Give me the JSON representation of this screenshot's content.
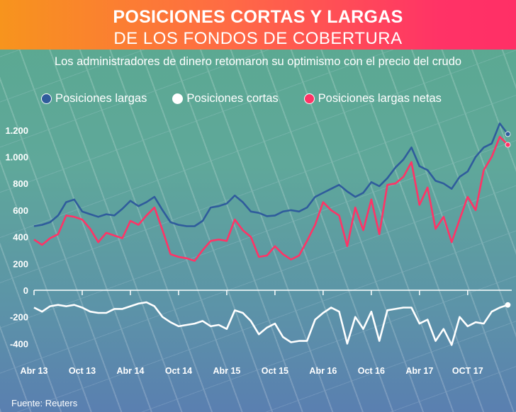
{
  "header": {
    "title_line1": "POSICIONES CORTAS Y LARGAS",
    "title_line2": "DE LOS FONDOS DE COBERTURA"
  },
  "subtitle": "Los administradores de dinero retomaron su optimismo con el precio del crudo",
  "source": "Fuente: Reuters",
  "colors": {
    "long": "#2f5c9c",
    "short": "#ffffff",
    "net": "#ff3366",
    "header_start": "#f7941d",
    "header_end": "#ff3366"
  },
  "chart_data": {
    "type": "line",
    "title": "",
    "xlabel": "",
    "ylabel": "",
    "ylim": [
      -500,
      1300
    ],
    "y_ticks": [
      {
        "v": 1200,
        "label": "1.200"
      },
      {
        "v": 1000,
        "label": "1.000"
      },
      {
        "v": 800,
        "label": "800"
      },
      {
        "v": 600,
        "label": "600"
      },
      {
        "v": 400,
        "label": "400"
      },
      {
        "v": 200,
        "label": "200"
      },
      {
        "v": 0,
        "label": "0"
      },
      {
        "v": -200,
        "label": "-200"
      },
      {
        "v": -400,
        "label": "-400"
      }
    ],
    "x_ticks": [
      {
        "x": "2013-04",
        "label": "Abr 13"
      },
      {
        "x": "2013-10",
        "label": "Oct 13"
      },
      {
        "x": "2014-04",
        "label": "Abr 14"
      },
      {
        "x": "2014-10",
        "label": "Oct 14"
      },
      {
        "x": "2015-04",
        "label": "Abr 15"
      },
      {
        "x": "2015-10",
        "label": "Oct 15"
      },
      {
        "x": "2016-04",
        "label": "Abr 16"
      },
      {
        "x": "2016-10",
        "label": "Oct 16"
      },
      {
        "x": "2017-04",
        "label": "Abr 17"
      },
      {
        "x": "2017-10",
        "label": "OCT 17"
      }
    ],
    "grid": false,
    "legend_placement": "top",
    "x": [
      "2013-04",
      "2013-05",
      "2013-06",
      "2013-07",
      "2013-08",
      "2013-09",
      "2013-10",
      "2013-11",
      "2013-12",
      "2014-01",
      "2014-02",
      "2014-03",
      "2014-04",
      "2014-05",
      "2014-06",
      "2014-07",
      "2014-08",
      "2014-09",
      "2014-10",
      "2014-11",
      "2014-12",
      "2015-01",
      "2015-02",
      "2015-03",
      "2015-04",
      "2015-05",
      "2015-06",
      "2015-07",
      "2015-08",
      "2015-09",
      "2015-10",
      "2015-11",
      "2015-12",
      "2016-01",
      "2016-02",
      "2016-03",
      "2016-04",
      "2016-05",
      "2016-06",
      "2016-07",
      "2016-08",
      "2016-09",
      "2016-10",
      "2016-11",
      "2016-12",
      "2017-01",
      "2017-02",
      "2017-03",
      "2017-04",
      "2017-05",
      "2017-06",
      "2017-07",
      "2017-08",
      "2017-09",
      "2017-10",
      "2017-11",
      "2017-12",
      "2018-01",
      "2018-02",
      "2018-03"
    ],
    "series": [
      {
        "name": "Posiciones largas",
        "key": "long",
        "values": [
          480,
          490,
          510,
          560,
          660,
          680,
          590,
          570,
          550,
          570,
          560,
          610,
          670,
          630,
          660,
          700,
          600,
          510,
          490,
          480,
          480,
          520,
          620,
          630,
          650,
          710,
          660,
          590,
          580,
          555,
          560,
          590,
          600,
          590,
          620,
          700,
          730,
          760,
          790,
          740,
          700,
          730,
          810,
          780,
          840,
          920,
          980,
          1070,
          930,
          900,
          820,
          800,
          760,
          850,
          890,
          1000,
          1070,
          1100,
          1250,
          1170
        ]
      },
      {
        "name": "Posiciones cortas",
        "key": "short",
        "values": [
          -130,
          -160,
          -120,
          -110,
          -120,
          -110,
          -130,
          -160,
          -170,
          -170,
          -140,
          -140,
          -120,
          -100,
          -90,
          -120,
          -200,
          -240,
          -270,
          -260,
          -250,
          -230,
          -270,
          -260,
          -290,
          -150,
          -170,
          -230,
          -330,
          -280,
          -250,
          -350,
          -390,
          -380,
          -380,
          -220,
          -170,
          -130,
          -160,
          -400,
          -200,
          -290,
          -160,
          -380,
          -150,
          -140,
          -130,
          -130,
          -250,
          -220,
          -380,
          -290,
          -410,
          -200,
          -270,
          -240,
          -250,
          -160,
          -130,
          -110
        ]
      },
      {
        "name": "Posiciones largas netas",
        "key": "net",
        "values": [
          380,
          340,
          390,
          420,
          560,
          550,
          530,
          460,
          360,
          430,
          410,
          390,
          520,
          490,
          560,
          620,
          450,
          270,
          250,
          240,
          220,
          300,
          370,
          380,
          370,
          530,
          450,
          400,
          250,
          260,
          330,
          270,
          230,
          260,
          370,
          490,
          660,
          600,
          560,
          330,
          620,
          450,
          680,
          420,
          790,
          800,
          850,
          960,
          640,
          770,
          460,
          550,
          360,
          530,
          700,
          600,
          900,
          1000,
          1150,
          1090
        ]
      }
    ]
  }
}
